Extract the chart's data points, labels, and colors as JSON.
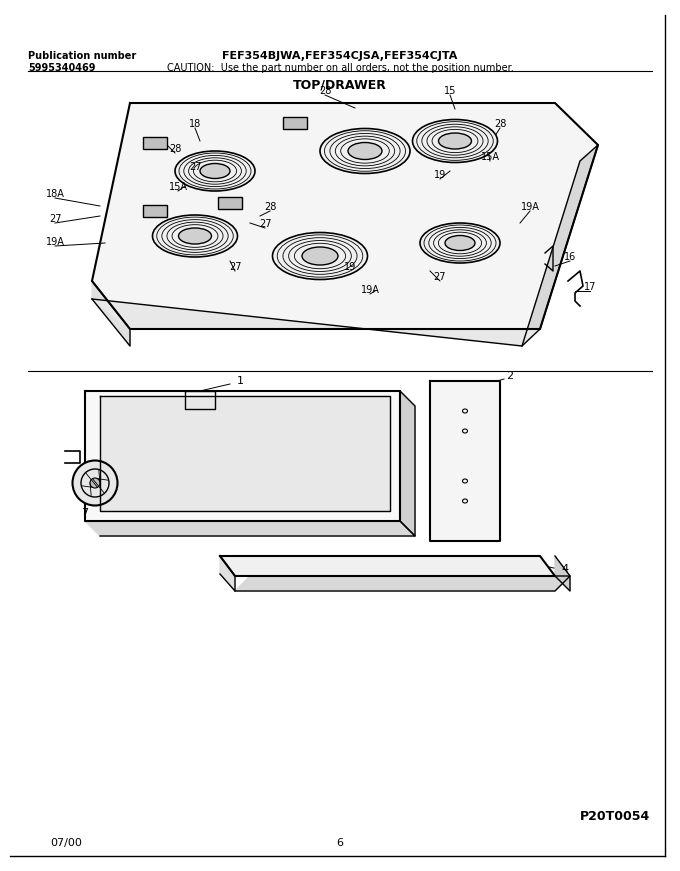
{
  "title_model": "FEF354BJWA,FEF354CJSA,FEF354CJTA",
  "title_caution": "CAUTION:  Use the part number on all orders, not the position number.",
  "pub_label": "Publication number",
  "pub_number": "5995340469",
  "section_title": "TOP/DRAWER",
  "page_id": "P20T0054",
  "date": "07/00",
  "page_num": "6",
  "bg_color": "#ffffff",
  "border_color": "#000000",
  "line_color": "#000000",
  "text_color": "#000000",
  "fig_width": 6.8,
  "fig_height": 8.71,
  "dpi": 100
}
